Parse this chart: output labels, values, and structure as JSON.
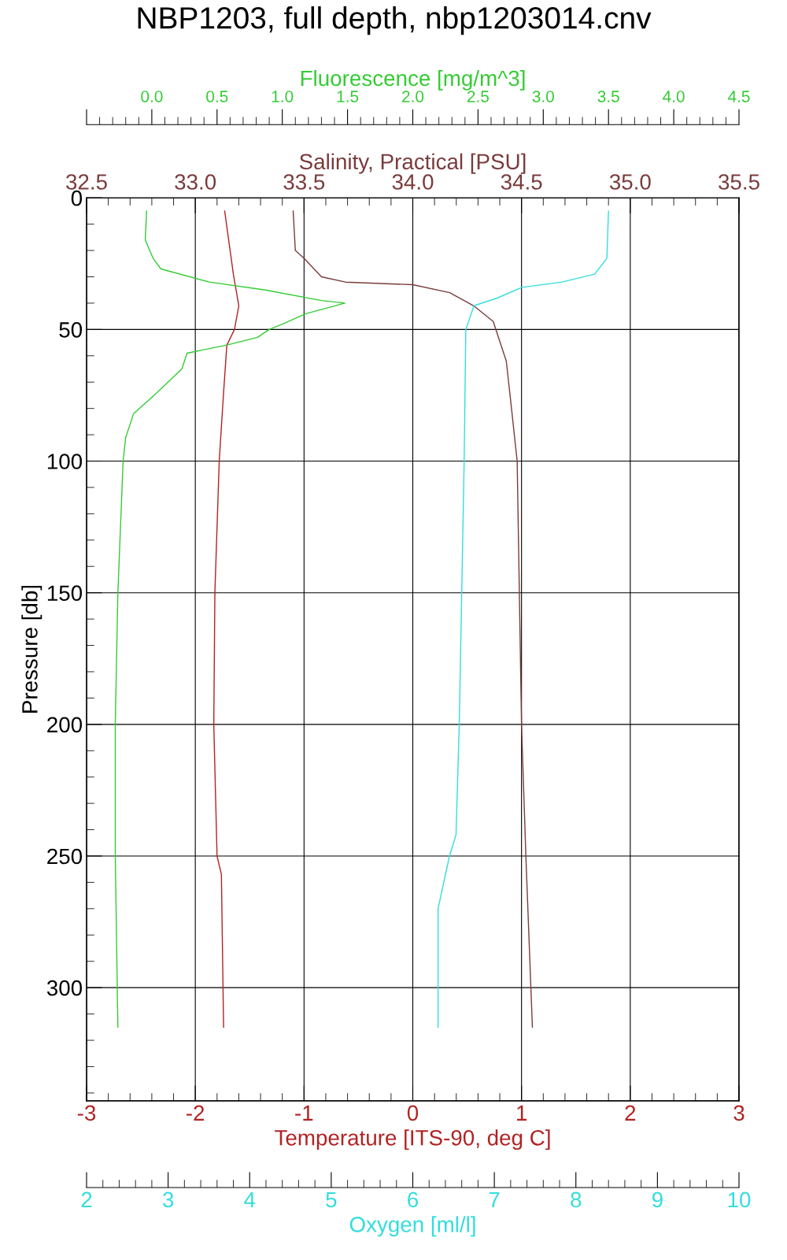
{
  "chart_data": [
    {
      "type": "line",
      "title": "NBP1203, full depth, nbp1203014.cnv",
      "ylabel": "Pressure [db]",
      "xlabel": "Temperature [ITS-90, deg C]",
      "x2label": "Salinity, Practical [PSU]",
      "ylim": [
        343,
        0
      ],
      "yticks": [
        0,
        50,
        100,
        150,
        200,
        250,
        300
      ],
      "xlim": [
        -3,
        3
      ],
      "xticks": [
        -3,
        -2,
        -1,
        0,
        1,
        2,
        3
      ],
      "x2lim": [
        32.5,
        35.5
      ],
      "x2ticks": [
        {
          "value": 32.5,
          "label": "32.5"
        },
        {
          "value": 33.0,
          "label": "33.0"
        },
        {
          "value": 33.5,
          "label": "33.5"
        },
        {
          "value": 34.0,
          "label": "34.0"
        },
        {
          "value": 34.5,
          "label": "34.5"
        },
        {
          "value": 35.0,
          "label": "35.0"
        },
        {
          "value": 35.5,
          "label": "35.5"
        }
      ],
      "grid": true,
      "marker": "none",
      "line_style": "solid",
      "series": [
        {
          "color": "#b22222",
          "x": [
            -1.73,
            -1.65,
            -1.6,
            -1.64,
            -1.71,
            -1.74,
            -1.78,
            -1.82,
            -1.83,
            -1.8,
            -1.76,
            -1.74
          ],
          "values": [
            5,
            29,
            41,
            50,
            56,
            74,
            100,
            150,
            200,
            250,
            257,
            315
          ]
        },
        {
          "axis": "x2",
          "color": "#7a3b3b",
          "x": [
            33.45,
            33.46,
            33.5,
            33.58,
            33.69,
            34.0,
            34.17,
            34.28,
            34.37,
            34.43,
            34.45,
            34.48,
            34.49,
            34.5,
            34.52,
            34.55
          ],
          "values": [
            5,
            20,
            23,
            30,
            32,
            33,
            36,
            41,
            47,
            62,
            77,
            100,
            150,
            200,
            250,
            315
          ]
        }
      ]
    },
    {
      "type": "line",
      "xlabel": "Oxygen [ml/l]",
      "x2label": "Fluorescence [mg/m^3]",
      "ylim": [
        343,
        0
      ],
      "tick_labels": "x",
      "xlim": [
        2,
        10
      ],
      "xticks": [
        2,
        3,
        4,
        5,
        6,
        7,
        8,
        9,
        10
      ],
      "x2lim": [
        -0.5,
        4.5
      ],
      "x2ticks": [
        {
          "value": -0.5,
          "label": null
        },
        {
          "value": 0,
          "label": "0.0"
        },
        {
          "value": 0.5,
          "label": "0.5"
        },
        {
          "value": 1,
          "label": "1.0"
        },
        {
          "value": 1.5,
          "label": "1.5"
        },
        {
          "value": 2,
          "label": "2.0"
        },
        {
          "value": 2.5,
          "label": "2.5"
        },
        {
          "value": 3,
          "label": "3.0"
        },
        {
          "value": 3.5,
          "label": "3.5"
        },
        {
          "value": 4,
          "label": "4.0"
        },
        {
          "value": 4.5,
          "label": "4.5"
        }
      ],
      "marker": "none",
      "line_style": "solid",
      "series": [
        {
          "color": "#33dddd",
          "x": [
            8.4,
            8.38,
            8.23,
            7.83,
            7.34,
            7.04,
            6.75,
            6.65,
            6.63,
            6.6,
            6.57,
            6.53,
            6.45,
            6.31,
            6.31
          ],
          "values": [
            5,
            23,
            29,
            32,
            34,
            38,
            41,
            50,
            100,
            150,
            200,
            242,
            250,
            270,
            315
          ]
        },
        {
          "axis": "x2",
          "color": "#33cc33",
          "x": [
            -0.04,
            -0.05,
            0.01,
            0.07,
            0.44,
            0.87,
            1.3,
            1.48,
            1.18,
            1.0,
            0.9,
            0.81,
            0.57,
            0.27,
            0.23,
            0.04,
            -0.14,
            -0.2,
            -0.22,
            -0.26,
            -0.28,
            -0.28,
            -0.26
          ],
          "values": [
            5,
            16,
            23,
            27,
            32,
            35,
            39,
            40,
            44,
            48,
            50,
            53,
            56,
            59,
            65,
            74,
            82,
            91,
            100,
            150,
            200,
            250,
            315
          ]
        }
      ]
    }
  ]
}
